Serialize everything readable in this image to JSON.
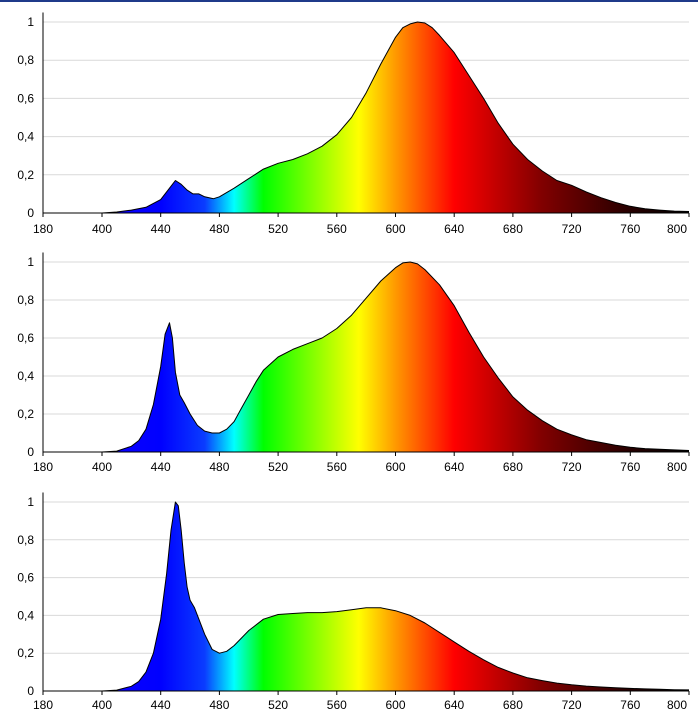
{
  "colors": {
    "top_rule": "#1f3a8a",
    "gridline": "#d9d9d9",
    "axis": "#000000",
    "outline": "#000000",
    "spectrum_stops": [
      {
        "wavelength": 380,
        "color": "#1a00ff"
      },
      {
        "wavelength": 440,
        "color": "#0000ff"
      },
      {
        "wavelength": 470,
        "color": "#0a3cff"
      },
      {
        "wavelength": 490,
        "color": "#00ffff"
      },
      {
        "wavelength": 510,
        "color": "#00ff00"
      },
      {
        "wavelength": 575,
        "color": "#ffff00"
      },
      {
        "wavelength": 600,
        "color": "#ff9900"
      },
      {
        "wavelength": 640,
        "color": "#ff0000"
      },
      {
        "wavelength": 700,
        "color": "#800000"
      },
      {
        "wavelength": 760,
        "color": "#260000"
      },
      {
        "wavelength": 800,
        "color": "#000000"
      }
    ]
  },
  "chart_data": [
    {
      "type": "area",
      "title": "",
      "xlabel": "",
      "ylabel": "",
      "x_tick_labels": [
        "180",
        "400",
        "440",
        "480",
        "520",
        "560",
        "600",
        "640",
        "680",
        "720",
        "760",
        "800"
      ],
      "y_tick_labels": [
        "0",
        "0,2",
        "0,4",
        "0,6",
        "0,8",
        "1"
      ],
      "y_ticks": [
        0,
        0.2,
        0.4,
        0.6,
        0.8,
        1
      ],
      "ylim": [
        0,
        1.05
      ],
      "grid": true,
      "series": [
        {
          "x": [
            380,
            400,
            410,
            420,
            430,
            440,
            446,
            450,
            454,
            458,
            462,
            466,
            470,
            476,
            480,
            490,
            500,
            510,
            520,
            530,
            540,
            550,
            560,
            570,
            580,
            590,
            600,
            605,
            610,
            615,
            620,
            625,
            630,
            640,
            650,
            660,
            670,
            680,
            690,
            700,
            710,
            720,
            730,
            740,
            750,
            760,
            770,
            780,
            790,
            800
          ],
          "y": [
            0,
            0,
            0.005,
            0.015,
            0.03,
            0.07,
            0.13,
            0.17,
            0.15,
            0.12,
            0.1,
            0.1,
            0.085,
            0.075,
            0.085,
            0.13,
            0.18,
            0.23,
            0.26,
            0.28,
            0.31,
            0.35,
            0.41,
            0.5,
            0.63,
            0.78,
            0.92,
            0.97,
            0.99,
            1.0,
            0.995,
            0.97,
            0.93,
            0.84,
            0.72,
            0.6,
            0.47,
            0.36,
            0.28,
            0.22,
            0.17,
            0.145,
            0.11,
            0.08,
            0.055,
            0.035,
            0.022,
            0.015,
            0.01,
            0.008
          ]
        }
      ]
    },
    {
      "type": "area",
      "title": "",
      "xlabel": "",
      "ylabel": "",
      "x_tick_labels": [
        "180",
        "400",
        "440",
        "480",
        "520",
        "560",
        "600",
        "640",
        "680",
        "720",
        "760",
        "800"
      ],
      "y_tick_labels": [
        "0",
        "0,2",
        "0,4",
        "0,6",
        "0,8",
        "1"
      ],
      "y_ticks": [
        0,
        0.2,
        0.4,
        0.6,
        0.8,
        1
      ],
      "ylim": [
        0,
        1.05
      ],
      "grid": true,
      "series": [
        {
          "x": [
            380,
            400,
            410,
            420,
            425,
            430,
            435,
            440,
            443,
            446,
            448,
            450,
            453,
            456,
            460,
            465,
            470,
            475,
            480,
            485,
            490,
            495,
            500,
            505,
            510,
            520,
            530,
            540,
            550,
            560,
            570,
            580,
            590,
            600,
            605,
            610,
            615,
            620,
            630,
            640,
            650,
            660,
            670,
            680,
            690,
            700,
            710,
            720,
            730,
            740,
            750,
            760,
            770,
            780,
            790,
            800
          ],
          "y": [
            0,
            0,
            0.005,
            0.03,
            0.06,
            0.12,
            0.25,
            0.45,
            0.62,
            0.68,
            0.6,
            0.42,
            0.3,
            0.26,
            0.2,
            0.14,
            0.11,
            0.1,
            0.1,
            0.12,
            0.16,
            0.23,
            0.3,
            0.37,
            0.43,
            0.5,
            0.54,
            0.57,
            0.6,
            0.65,
            0.72,
            0.81,
            0.9,
            0.97,
            0.995,
            1.0,
            0.99,
            0.96,
            0.88,
            0.77,
            0.63,
            0.5,
            0.39,
            0.29,
            0.22,
            0.165,
            0.12,
            0.09,
            0.065,
            0.05,
            0.035,
            0.025,
            0.018,
            0.014,
            0.011,
            0.008
          ]
        }
      ]
    },
    {
      "type": "area",
      "title": "",
      "xlabel": "",
      "ylabel": "",
      "x_tick_labels": [
        "180",
        "400",
        "440",
        "480",
        "520",
        "560",
        "600",
        "640",
        "680",
        "720",
        "760",
        "800"
      ],
      "y_tick_labels": [
        "0",
        "0,2",
        "0,4",
        "0,6",
        "0,8",
        "1"
      ],
      "y_ticks": [
        0,
        0.2,
        0.4,
        0.6,
        0.8,
        1
      ],
      "ylim": [
        0,
        1.05
      ],
      "grid": true,
      "series": [
        {
          "x": [
            380,
            400,
            410,
            420,
            425,
            430,
            435,
            440,
            444,
            447,
            450,
            452,
            454,
            456,
            458,
            460,
            463,
            466,
            470,
            475,
            480,
            485,
            490,
            495,
            500,
            510,
            520,
            530,
            540,
            550,
            560,
            570,
            580,
            590,
            600,
            610,
            620,
            630,
            640,
            650,
            660,
            670,
            680,
            690,
            700,
            710,
            720,
            730,
            740,
            750,
            760,
            770,
            780,
            790,
            800
          ],
          "y": [
            0,
            0,
            0.005,
            0.025,
            0.05,
            0.1,
            0.2,
            0.38,
            0.62,
            0.85,
            1.0,
            0.98,
            0.85,
            0.68,
            0.55,
            0.48,
            0.44,
            0.38,
            0.3,
            0.22,
            0.2,
            0.21,
            0.24,
            0.28,
            0.32,
            0.38,
            0.405,
            0.41,
            0.415,
            0.415,
            0.42,
            0.43,
            0.44,
            0.44,
            0.425,
            0.4,
            0.36,
            0.31,
            0.26,
            0.21,
            0.165,
            0.125,
            0.095,
            0.07,
            0.055,
            0.042,
            0.033,
            0.026,
            0.021,
            0.017,
            0.014,
            0.011,
            0.009,
            0.007,
            0.006
          ]
        }
      ]
    }
  ]
}
